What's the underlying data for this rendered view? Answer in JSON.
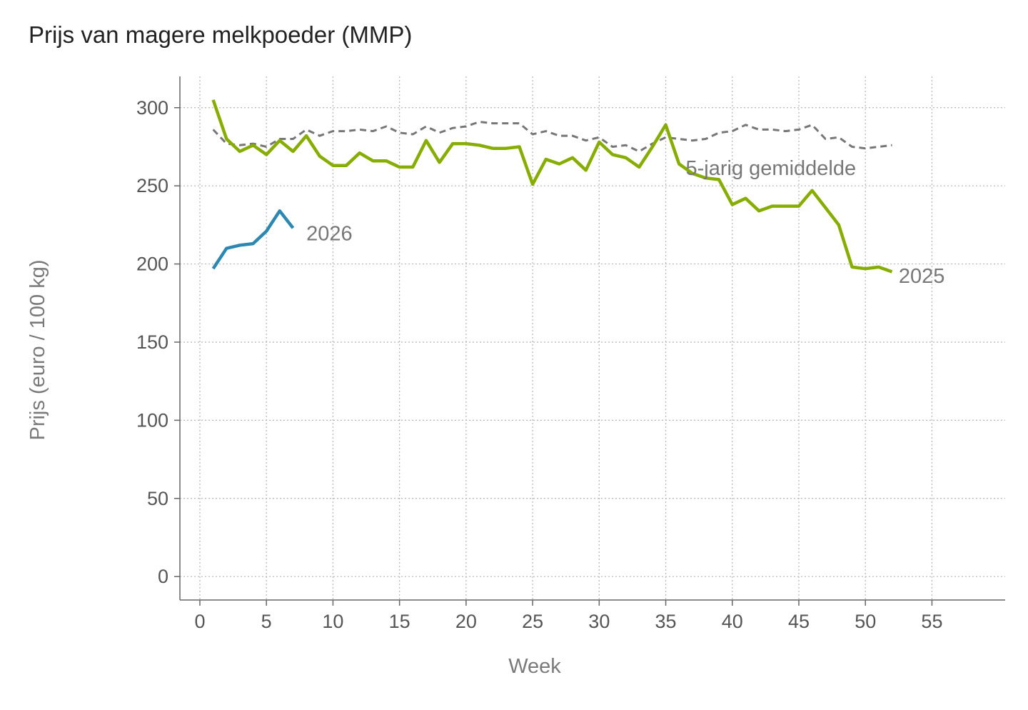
{
  "chart_data": {
    "type": "line",
    "title": "Prijs van magere melkpoeder (MMP)",
    "xlabel": "Week",
    "ylabel": "Prijs (euro / 100 kg)",
    "xlim": [
      -1.5,
      60.5
    ],
    "ylim": [
      -15,
      320
    ],
    "xticks": [
      0,
      5,
      10,
      15,
      20,
      25,
      30,
      35,
      40,
      45,
      50,
      55
    ],
    "yticks": [
      0,
      50,
      100,
      150,
      200,
      250,
      300
    ],
    "grid": true,
    "series": [
      {
        "name": "5-jarig gemiddelde",
        "label": "5-jarig gemiddelde",
        "color": "#777777",
        "dashed": true,
        "x": [
          1,
          2,
          3,
          4,
          5,
          6,
          7,
          8,
          9,
          10,
          11,
          12,
          13,
          14,
          15,
          16,
          17,
          18,
          19,
          20,
          21,
          22,
          23,
          24,
          25,
          26,
          27,
          28,
          29,
          30,
          31,
          32,
          33,
          34,
          35,
          36,
          37,
          38,
          39,
          40,
          41,
          42,
          43,
          44,
          45,
          46,
          47,
          48,
          49,
          50,
          51,
          52
        ],
        "values": [
          286,
          277,
          276,
          277,
          275,
          280,
          280,
          286,
          282,
          285,
          285,
          286,
          285,
          288,
          284,
          283,
          288,
          284,
          287,
          288,
          291,
          290,
          290,
          290,
          283,
          285,
          282,
          282,
          279,
          281,
          275,
          276,
          272,
          277,
          281,
          280,
          279,
          280,
          284,
          285,
          289,
          286,
          286,
          285,
          286,
          289,
          280,
          281,
          275,
          274,
          275,
          276
        ]
      },
      {
        "name": "2025",
        "label": "2025",
        "color": "#86ad00",
        "dashed": false,
        "x": [
          1,
          2,
          3,
          4,
          5,
          6,
          7,
          8,
          9,
          10,
          11,
          12,
          13,
          14,
          15,
          16,
          17,
          18,
          19,
          20,
          21,
          22,
          23,
          24,
          25,
          26,
          27,
          28,
          29,
          30,
          31,
          32,
          33,
          34,
          35,
          36,
          37,
          38,
          39,
          40,
          41,
          42,
          43,
          44,
          45,
          46,
          47,
          48,
          49,
          50,
          51,
          52
        ],
        "values": [
          305,
          280,
          272,
          276,
          270,
          279,
          272,
          282,
          269,
          263,
          263,
          271,
          266,
          266,
          262,
          262,
          279,
          265,
          277,
          277,
          276,
          274,
          274,
          275,
          251,
          267,
          264,
          268,
          260,
          278,
          270,
          268,
          262,
          275,
          289,
          264,
          258,
          255,
          254,
          238,
          242,
          234,
          237,
          237,
          237,
          247,
          236,
          225,
          198,
          197,
          198,
          195
        ]
      },
      {
        "name": "2026",
        "label": "2026",
        "color": "#2c88b0",
        "dashed": false,
        "x": [
          1,
          2,
          3,
          4,
          5,
          6,
          7
        ],
        "values": [
          197,
          210,
          212,
          213,
          221,
          234,
          223
        ]
      }
    ]
  }
}
